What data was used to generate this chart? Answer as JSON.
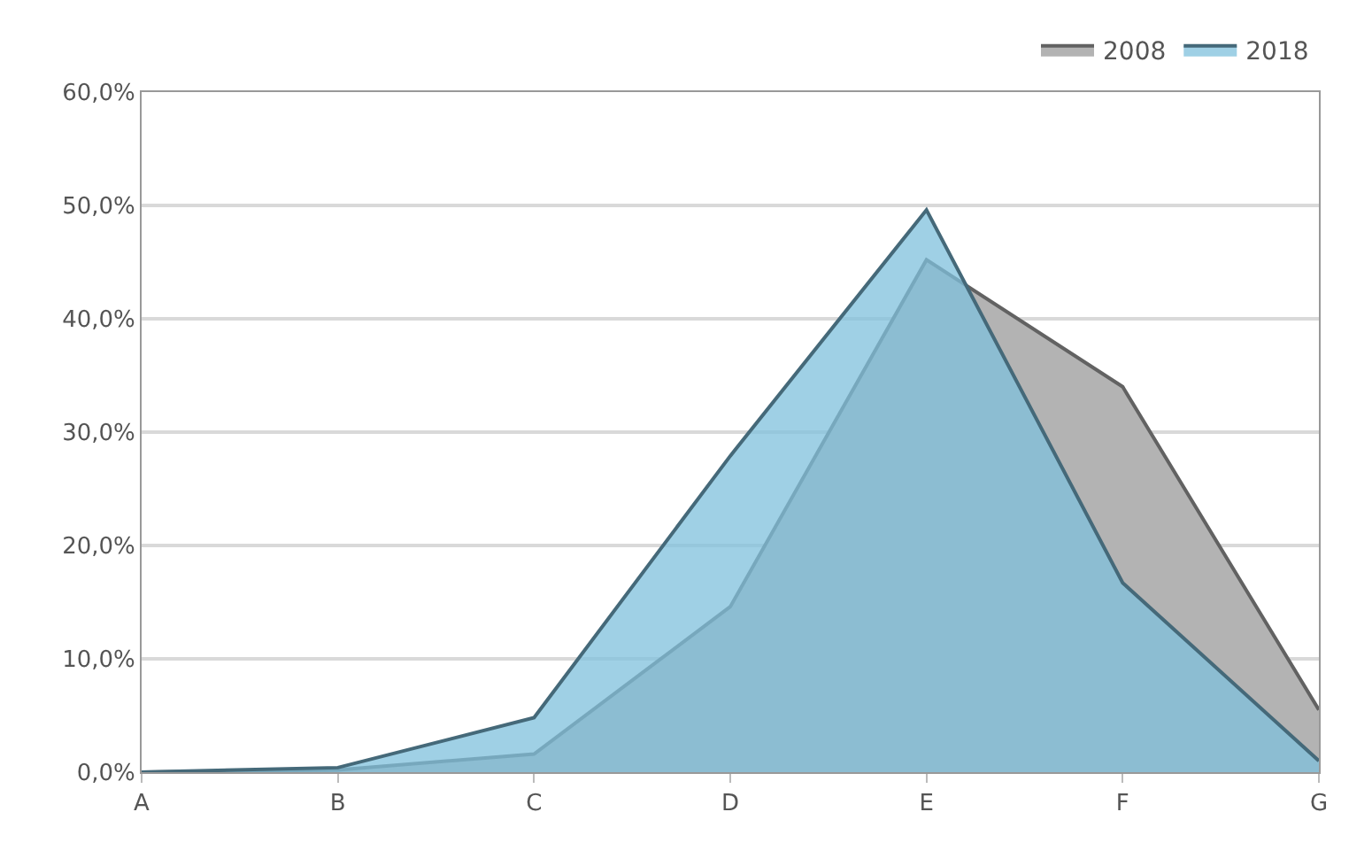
{
  "chart_data": {
    "type": "area",
    "categories": [
      "A",
      "B",
      "C",
      "D",
      "E",
      "F",
      "G"
    ],
    "series": [
      {
        "name": "2008",
        "color": "#b3b3b3",
        "values": [
          0,
          0.2,
          1.6,
          14.6,
          45.2,
          34.0,
          5.5
        ]
      },
      {
        "name": "2018",
        "color": "#7fc0dc",
        "values": [
          0,
          0.4,
          4.8,
          27.9,
          49.6,
          16.7,
          1.0
        ]
      }
    ],
    "ylim": [
      0,
      60
    ],
    "yticks": [
      {
        "value": 0,
        "label": "0,0%"
      },
      {
        "value": 10,
        "label": "10,0%"
      },
      {
        "value": 20,
        "label": "20,0%"
      },
      {
        "value": 30,
        "label": "30,0%"
      },
      {
        "value": 40,
        "label": "40,0%"
      },
      {
        "value": 50,
        "label": "50,0%"
      },
      {
        "value": 60,
        "label": "60,0%"
      }
    ],
    "grid": "y",
    "legend": "top right"
  }
}
